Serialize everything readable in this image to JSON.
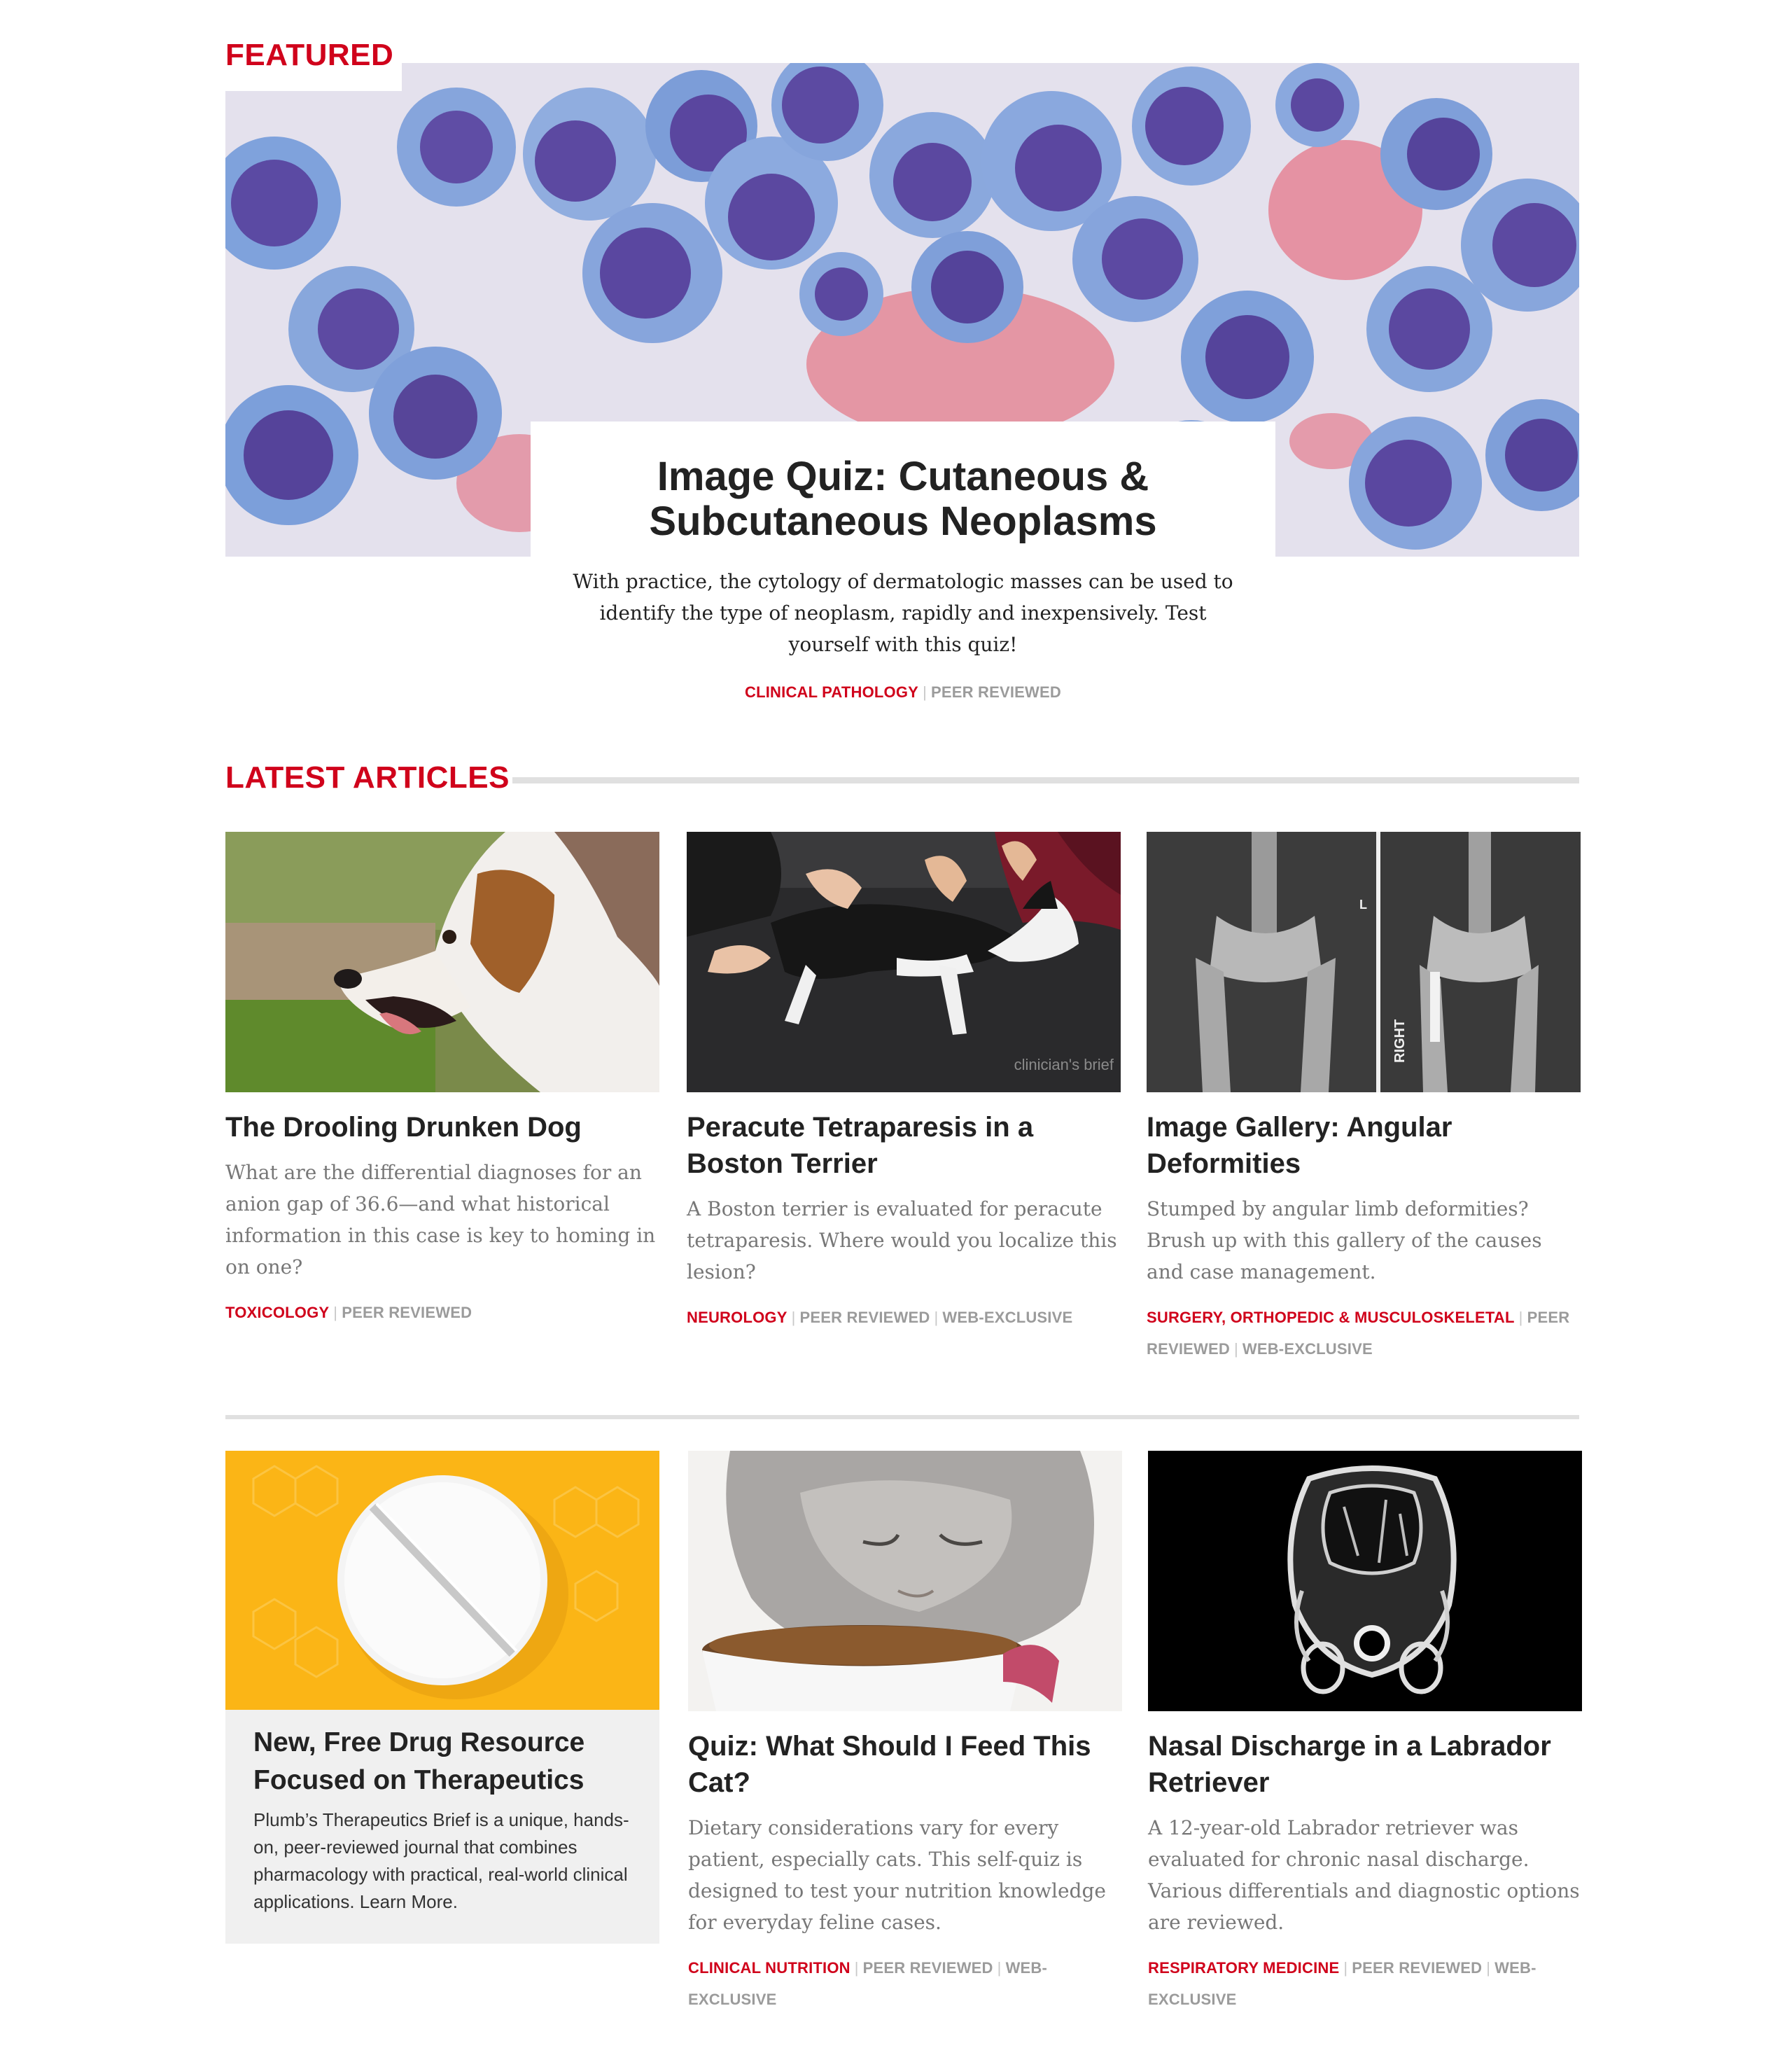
{
  "featured": {
    "section_label": "FEATURED",
    "title": "Image Quiz: Cutaneous & Subcutaneous Neoplasms",
    "description": "With practice, the cytology of dermatologic masses can be used to identify the type of neoplasm, rapidly and inexpensively. Test yourself with this quiz!",
    "tags": [
      "CLINICAL PATHOLOGY",
      "PEER REVIEWED"
    ]
  },
  "latest": {
    "section_label": "LATEST ARTICLES",
    "cards": [
      {
        "title": "The Drooling Drunken Dog",
        "description": "What are the differential diagnoses for an anion gap of 36.6—and what historical information in this case is key to homing in on one?",
        "tags": [
          "TOXICOLOGY",
          "PEER REVIEWED"
        ]
      },
      {
        "title": "Peracute Tetraparesis in a Boston Terrier",
        "description": "A Boston terrier is evaluated for peracute tetraparesis. Where would you localize this lesion?",
        "tags": [
          "NEUROLOGY",
          "PEER REVIEWED",
          "WEB-EXCLUSIVE"
        ],
        "image_watermark": "clinician's brief"
      },
      {
        "title": "Image Gallery: Angular Deformities",
        "description": "Stumped by angular limb deformities? Brush up with this gallery of the causes and case management.",
        "tags": [
          "SURGERY, ORTHOPEDIC & MUSCULOSKELETAL",
          "PEER REVIEWED",
          "WEB-EXCLUSIVE"
        ],
        "xray_marker_left": "L",
        "xray_marker_right": "RIGHT"
      },
      {
        "title": "New, Free Drug Resource Focused on Therapeutics",
        "description": "Plumb’s Therapeutics Brief is a unique, hands-on, peer-reviewed journal that combines pharmacology with practical, real-world clinical applications. Learn More."
      },
      {
        "title": "Quiz: What Should I Feed This Cat?",
        "description": "Dietary considerations vary for every patient, especially cats. This self-quiz is designed to test your nutrition knowledge for everyday feline cases.",
        "tags": [
          "CLINICAL NUTRITION",
          "PEER REVIEWED",
          "WEB-EXCLUSIVE"
        ]
      },
      {
        "title": "Nasal Discharge in a Labrador Retriever",
        "description": "A 12-year-old Labrador retriever was evaluated for chronic nasal discharge. Various differentials and diagnostic options are reviewed.",
        "tags": [
          "RESPIRATORY MEDICINE",
          "PEER REVIEWED",
          "WEB-EXCLUSIVE"
        ]
      }
    ]
  },
  "colors": {
    "accent": "#d0021b",
    "tag_grey": "#9b9b9b",
    "rule": "#e0e0e0",
    "promo_bg": "#f0f0f0",
    "promo_image_bg": "#fbb516"
  }
}
